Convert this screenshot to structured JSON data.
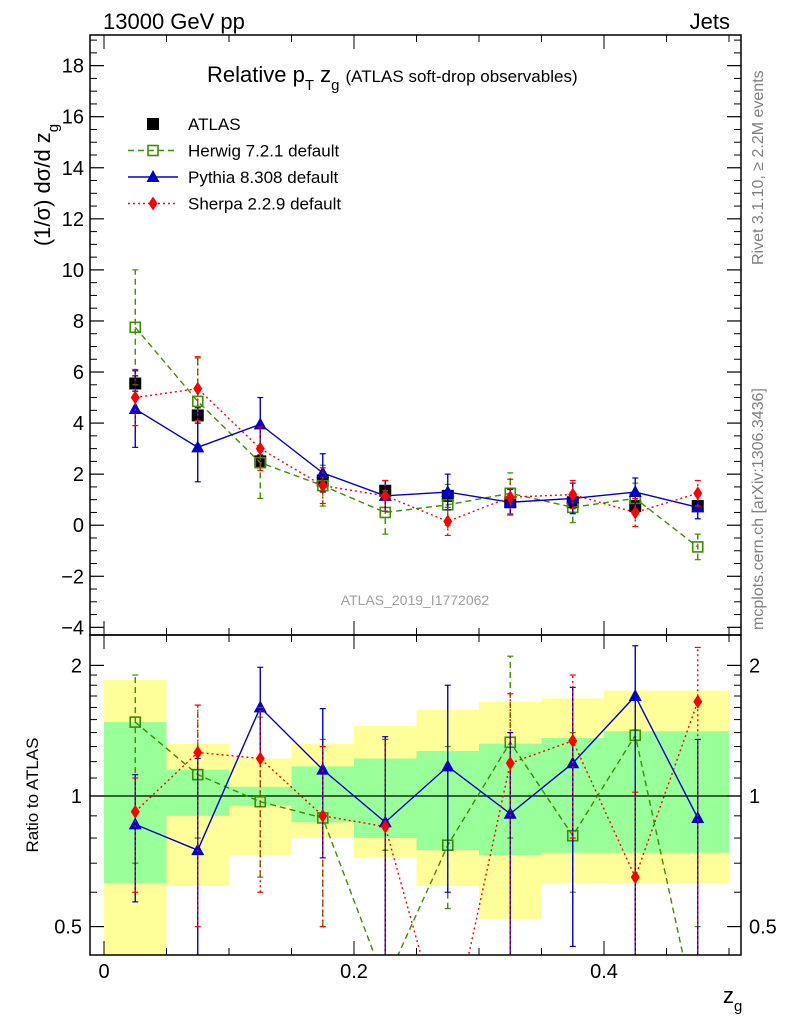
{
  "header": {
    "left": "13000 GeV pp",
    "right": "Jets"
  },
  "chart_data": [
    {
      "type": "line",
      "panel": "main",
      "title": "Relative pT zg (ATLAS soft-drop observables)",
      "title_parts": {
        "prefix": "Relative p",
        "sub1": "T",
        "mid": " z",
        "sub2": "g",
        "suffix": "(ATLAS soft-drop observables)"
      },
      "ylabel": "(1/σ) dσ/d zg",
      "ylabel_parts": {
        "main": "(1/σ) dσ/d z",
        "sub": "g"
      },
      "xlabel": "zg",
      "xlabel_parts": {
        "main": "z",
        "sub": "g"
      },
      "xlim": [
        0,
        0.5
      ],
      "ylim": [
        -4.3,
        19.2
      ],
      "x_ticks": [
        0,
        0.2,
        0.4
      ],
      "y_ticks": [
        -4,
        -2,
        0,
        2,
        4,
        6,
        8,
        10,
        12,
        14,
        16,
        18
      ],
      "x_tick_labels": [
        "0",
        "0.2",
        "0.4"
      ],
      "y_tick_labels": [
        "−4",
        "−2",
        "0",
        "2",
        "4",
        "6",
        "8",
        "10",
        "12",
        "14",
        "16",
        "18"
      ],
      "legend_placement": "top-left",
      "x": [
        0.025,
        0.075,
        0.125,
        0.175,
        0.225,
        0.275,
        0.325,
        0.375,
        0.425,
        0.475
      ],
      "series": [
        {
          "name": "ATLAS",
          "color": "#000000",
          "marker": "square-filled",
          "style": "none",
          "values": [
            5.55,
            4.3,
            2.5,
            1.75,
            1.35,
            1.15,
            0.9,
            0.9,
            0.75,
            0.75
          ],
          "errors": [
            0.3,
            0.3,
            0.25,
            0.2,
            0.2,
            0.2,
            0.2,
            0.2,
            0.2,
            0.2
          ]
        },
        {
          "name": "Herwig 7.2.1 default",
          "color": "#3a8f00",
          "marker": "square-open",
          "style": "dashed",
          "values": [
            7.75,
            4.85,
            2.45,
            1.55,
            0.5,
            0.8,
            1.25,
            0.7,
            1.05,
            -0.85
          ],
          "errors": [
            2.25,
            1.7,
            1.4,
            0.8,
            0.85,
            0.8,
            0.8,
            0.6,
            0.6,
            0.5
          ]
        },
        {
          "name": "Pythia 8.308 default",
          "color": "#0000cc",
          "marker": "triangle",
          "style": "solid",
          "values": [
            4.55,
            3.05,
            3.95,
            2.05,
            1.15,
            1.3,
            0.9,
            1.05,
            1.3,
            0.7
          ],
          "errors": [
            1.5,
            1.35,
            1.05,
            0.75,
            0.6,
            0.7,
            0.5,
            0.6,
            0.55,
            0.45
          ]
        },
        {
          "name": "Sherpa 2.2.9 default",
          "color": "#ff0000",
          "marker": "diamond",
          "style": "dotted",
          "values": [
            5.0,
            5.35,
            3.0,
            1.55,
            1.15,
            0.15,
            1.1,
            1.2,
            0.5,
            1.25
          ],
          "errors": [
            1.1,
            1.25,
            0.85,
            0.7,
            0.6,
            0.55,
            0.7,
            0.55,
            0.55,
            0.5
          ]
        }
      ],
      "watermark": "ATLAS_2019_I1772062"
    },
    {
      "type": "line",
      "panel": "ratio",
      "ylabel": "Ratio to ATLAS",
      "y_scale": "log",
      "ylim": [
        0.43,
        2.35
      ],
      "y_ticks": [
        0.5,
        1,
        2
      ],
      "y_tick_labels": [
        "0.5",
        "1",
        "2"
      ],
      "x_ticks": [
        0,
        0.2,
        0.4
      ],
      "x_tick_labels": [
        "0",
        "0.2",
        "0.4"
      ],
      "reference_line": 1,
      "bands": {
        "bin_edges": [
          0,
          0.05,
          0.1,
          0.15,
          0.2,
          0.25,
          0.3,
          0.35,
          0.4,
          0.45,
          0.5
        ],
        "yellow_low": [
          0.43,
          0.62,
          0.73,
          0.8,
          0.72,
          0.62,
          0.52,
          0.63,
          0.63,
          0.63
        ],
        "yellow_high": [
          1.85,
          1.32,
          1.22,
          1.32,
          1.45,
          1.58,
          1.65,
          1.68,
          1.75,
          1.75
        ],
        "green_low": [
          0.63,
          0.9,
          0.95,
          0.87,
          0.8,
          0.75,
          0.73,
          0.74,
          0.74,
          0.74
        ],
        "green_high": [
          1.48,
          1.15,
          1.05,
          1.17,
          1.22,
          1.27,
          1.32,
          1.36,
          1.41,
          1.41
        ]
      },
      "series": [
        {
          "name": "Herwig 7.2.1 default",
          "color": "#3a8f00",
          "marker": "square-open",
          "style": "dashed",
          "values": [
            1.48,
            1.12,
            0.97,
            0.89,
            0.37,
            0.77,
            1.33,
            0.81,
            1.38,
            0.3
          ],
          "err_low": [
            0.7,
            0.8,
            0.65,
            0.5,
            0.2,
            0.55,
            0.8,
            0.6,
            0.2,
            0.1
          ],
          "err_high": [
            1.9,
            1.62,
            1.52,
            1.35,
            0.75,
            1.3,
            2.1,
            1.4,
            1.42,
            0.5
          ]
        },
        {
          "name": "Pythia 8.308 default",
          "color": "#0000cc",
          "marker": "triangle",
          "style": "solid",
          "values": [
            0.86,
            0.75,
            1.6,
            1.15,
            0.87,
            1.17,
            0.91,
            1.19,
            1.7,
            0.89
          ],
          "err_low": [
            0.57,
            0.35,
            1.22,
            0.72,
            0.4,
            0.6,
            0.4,
            0.45,
            0.4,
            0.3
          ],
          "err_high": [
            1.12,
            1.22,
            1.98,
            1.59,
            1.37,
            1.8,
            1.4,
            1.78,
            2.22,
            1.35
          ]
        },
        {
          "name": "Sherpa 2.2.9 default",
          "color": "#ff0000",
          "marker": "diamond",
          "style": "dotted",
          "values": [
            0.92,
            1.26,
            1.22,
            0.9,
            0.85,
            0.13,
            1.19,
            1.34,
            0.65,
            1.65
          ],
          "err_low": [
            0.6,
            0.5,
            0.6,
            0.5,
            0.4,
            0.05,
            0.2,
            0.8,
            0.3,
            0.2
          ],
          "err_high": [
            1.1,
            1.62,
            1.6,
            1.3,
            1.35,
            0.3,
            1.72,
            1.9,
            1.02,
            2.2
          ]
        }
      ]
    }
  ],
  "side_text": {
    "rivet": "Rivet 3.1.10, ≥ 2.2M events",
    "mcplots": "mcplots.cern.ch [arXiv:1306.3436]"
  }
}
